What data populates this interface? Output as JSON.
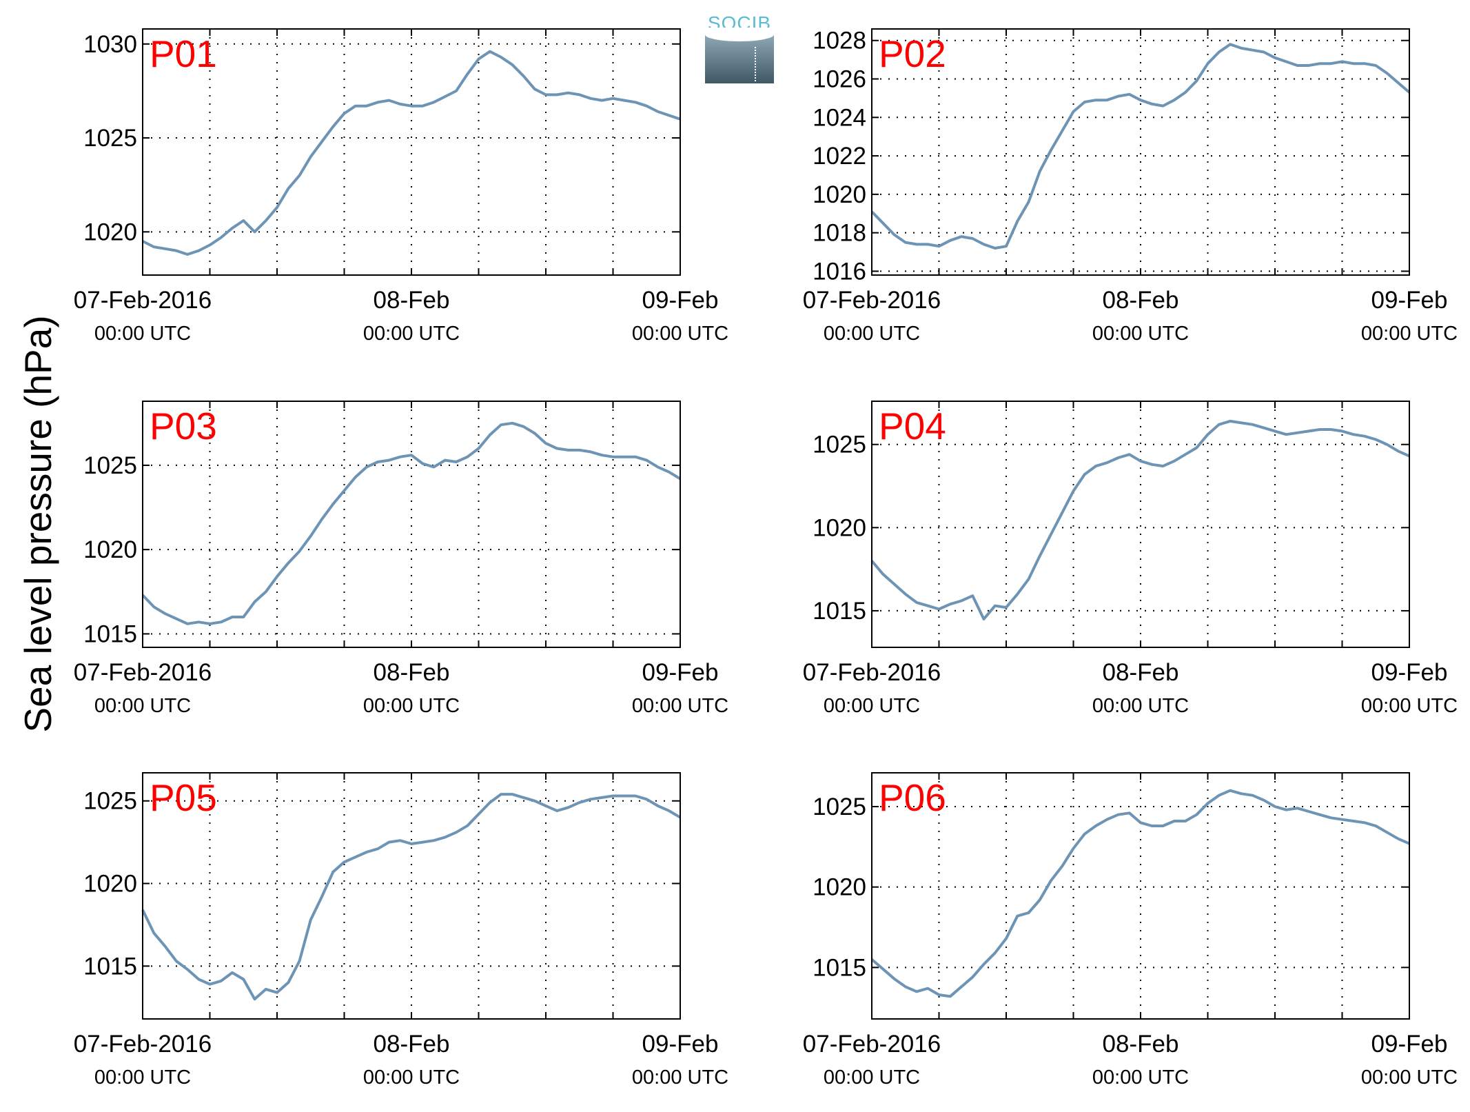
{
  "figure": {
    "ylabel": "Sea level pressure (hPa)",
    "logo_text": "SOCIB",
    "line_color": "#6d94b5",
    "station_label_color": "#ff0000",
    "x_ticks": [
      {
        "day": 0,
        "line1": "07-Feb-2016",
        "line2": "00:00 UTC"
      },
      {
        "day": 1,
        "line1": "08-Feb",
        "line2": "00:00 UTC"
      },
      {
        "day": 2,
        "line1": "09-Feb",
        "line2": "00:00 UTC"
      }
    ],
    "x_grid_step_hours": 6
  },
  "chart_data": [
    {
      "type": "line",
      "label": "P01",
      "xlim": [
        0,
        48
      ],
      "ylim": [
        1017.7,
        1030.8
      ],
      "yticks": [
        1020,
        1025,
        1030
      ],
      "x": [
        0,
        1,
        2,
        3,
        4,
        5,
        6,
        7,
        8,
        9,
        10,
        11,
        12,
        13,
        14,
        15,
        16,
        17,
        18,
        19,
        20,
        21,
        22,
        23,
        24,
        25,
        26,
        27,
        28,
        29,
        30,
        31,
        32,
        33,
        34,
        35,
        36,
        37,
        38,
        39,
        40,
        41,
        42,
        43,
        44,
        45,
        46,
        47,
        48
      ],
      "y": [
        1019.5,
        1019.2,
        1019.1,
        1019.0,
        1018.8,
        1019.0,
        1019.3,
        1019.7,
        1020.2,
        1020.6,
        1020.0,
        1020.6,
        1021.3,
        1022.3,
        1023.0,
        1024.0,
        1024.8,
        1025.6,
        1026.3,
        1026.7,
        1026.7,
        1026.9,
        1027.0,
        1026.8,
        1026.7,
        1026.7,
        1026.9,
        1027.2,
        1027.5,
        1028.4,
        1029.2,
        1029.6,
        1029.3,
        1028.9,
        1028.3,
        1027.6,
        1027.3,
        1027.3,
        1027.4,
        1027.3,
        1027.1,
        1027.0,
        1027.1,
        1027.0,
        1026.9,
        1026.7,
        1026.4,
        1026.2,
        1026.0
      ]
    },
    {
      "type": "line",
      "label": "P02",
      "xlim": [
        0,
        48
      ],
      "ylim": [
        1015.8,
        1028.6
      ],
      "yticks": [
        1016,
        1018,
        1020,
        1022,
        1024,
        1026,
        1028
      ],
      "x": [
        0,
        1,
        2,
        3,
        4,
        5,
        6,
        7,
        8,
        9,
        10,
        11,
        12,
        13,
        14,
        15,
        16,
        17,
        18,
        19,
        20,
        21,
        22,
        23,
        24,
        25,
        26,
        27,
        28,
        29,
        30,
        31,
        32,
        33,
        34,
        35,
        36,
        37,
        38,
        39,
        40,
        41,
        42,
        43,
        44,
        45,
        46,
        47,
        48
      ],
      "y": [
        1019.1,
        1018.5,
        1017.9,
        1017.5,
        1017.4,
        1017.4,
        1017.3,
        1017.6,
        1017.8,
        1017.7,
        1017.4,
        1017.2,
        1017.3,
        1018.6,
        1019.6,
        1021.2,
        1022.3,
        1023.3,
        1024.3,
        1024.8,
        1024.9,
        1024.9,
        1025.1,
        1025.2,
        1024.9,
        1024.7,
        1024.6,
        1024.9,
        1025.3,
        1025.9,
        1026.8,
        1027.4,
        1027.8,
        1027.6,
        1027.5,
        1027.4,
        1027.1,
        1026.9,
        1026.7,
        1026.7,
        1026.8,
        1026.8,
        1026.9,
        1026.8,
        1026.8,
        1026.7,
        1026.3,
        1025.8,
        1025.3
      ]
    },
    {
      "type": "line",
      "label": "P03",
      "xlim": [
        0,
        48
      ],
      "ylim": [
        1014.2,
        1028.8
      ],
      "yticks": [
        1015,
        1020,
        1025
      ],
      "x": [
        0,
        1,
        2,
        3,
        4,
        5,
        6,
        7,
        8,
        9,
        10,
        11,
        12,
        13,
        14,
        15,
        16,
        17,
        18,
        19,
        20,
        21,
        22,
        23,
        24,
        25,
        26,
        27,
        28,
        29,
        30,
        31,
        32,
        33,
        34,
        35,
        36,
        37,
        38,
        39,
        40,
        41,
        42,
        43,
        44,
        45,
        46,
        47,
        48
      ],
      "y": [
        1017.3,
        1016.6,
        1016.2,
        1015.9,
        1015.6,
        1015.7,
        1015.6,
        1015.7,
        1016.0,
        1016.0,
        1016.9,
        1017.5,
        1018.4,
        1019.2,
        1019.9,
        1020.8,
        1021.8,
        1022.7,
        1023.5,
        1024.3,
        1024.9,
        1025.2,
        1025.3,
        1025.5,
        1025.6,
        1025.1,
        1024.9,
        1025.3,
        1025.2,
        1025.5,
        1026.0,
        1026.8,
        1027.4,
        1027.5,
        1027.3,
        1026.9,
        1026.3,
        1026.0,
        1025.9,
        1025.9,
        1025.8,
        1025.6,
        1025.5,
        1025.5,
        1025.5,
        1025.3,
        1024.9,
        1024.6,
        1024.2
      ]
    },
    {
      "type": "line",
      "label": "P04",
      "xlim": [
        0,
        48
      ],
      "ylim": [
        1012.8,
        1027.6
      ],
      "yticks": [
        1015,
        1020,
        1025
      ],
      "x": [
        0,
        1,
        2,
        3,
        4,
        5,
        6,
        7,
        8,
        9,
        10,
        11,
        12,
        13,
        14,
        15,
        16,
        17,
        18,
        19,
        20,
        21,
        22,
        23,
        24,
        25,
        26,
        27,
        28,
        29,
        30,
        31,
        32,
        33,
        34,
        35,
        36,
        37,
        38,
        39,
        40,
        41,
        42,
        43,
        44,
        45,
        46,
        47,
        48
      ],
      "y": [
        1018.0,
        1017.2,
        1016.6,
        1016.0,
        1015.5,
        1015.3,
        1015.1,
        1015.4,
        1015.6,
        1015.9,
        1014.5,
        1015.3,
        1015.2,
        1016.0,
        1016.9,
        1018.3,
        1019.6,
        1020.9,
        1022.2,
        1023.2,
        1023.7,
        1023.9,
        1024.2,
        1024.4,
        1024.0,
        1023.8,
        1023.7,
        1024.0,
        1024.4,
        1024.8,
        1025.6,
        1026.2,
        1026.4,
        1026.3,
        1026.2,
        1026.0,
        1025.8,
        1025.6,
        1025.7,
        1025.8,
        1025.9,
        1025.9,
        1025.8,
        1025.6,
        1025.5,
        1025.3,
        1025.0,
        1024.6,
        1024.3
      ]
    },
    {
      "type": "line",
      "label": "P05",
      "xlim": [
        0,
        48
      ],
      "ylim": [
        1011.8,
        1026.7
      ],
      "yticks": [
        1015,
        1020,
        1025
      ],
      "x": [
        0,
        1,
        2,
        3,
        4,
        5,
        6,
        7,
        8,
        9,
        10,
        11,
        12,
        13,
        14,
        15,
        16,
        17,
        18,
        19,
        20,
        21,
        22,
        23,
        24,
        25,
        26,
        27,
        28,
        29,
        30,
        31,
        32,
        33,
        34,
        35,
        36,
        37,
        38,
        39,
        40,
        41,
        42,
        43,
        44,
        45,
        46,
        47,
        48
      ],
      "y": [
        1018.4,
        1017.0,
        1016.2,
        1015.3,
        1014.8,
        1014.2,
        1013.9,
        1014.1,
        1014.6,
        1014.2,
        1013.0,
        1013.6,
        1013.4,
        1014.0,
        1015.3,
        1017.8,
        1019.2,
        1020.7,
        1021.3,
        1021.6,
        1021.9,
        1022.1,
        1022.5,
        1022.6,
        1022.4,
        1022.5,
        1022.6,
        1022.8,
        1023.1,
        1023.5,
        1024.2,
        1024.9,
        1025.4,
        1025.4,
        1025.2,
        1025.0,
        1024.7,
        1024.4,
        1024.6,
        1024.9,
        1025.1,
        1025.2,
        1025.3,
        1025.3,
        1025.3,
        1025.1,
        1024.7,
        1024.4,
        1024.0
      ]
    },
    {
      "type": "line",
      "label": "P06",
      "xlim": [
        0,
        48
      ],
      "ylim": [
        1011.8,
        1027.1
      ],
      "yticks": [
        1015,
        1020,
        1025
      ],
      "x": [
        0,
        1,
        2,
        3,
        4,
        5,
        6,
        7,
        8,
        9,
        10,
        11,
        12,
        13,
        14,
        15,
        16,
        17,
        18,
        19,
        20,
        21,
        22,
        23,
        24,
        25,
        26,
        27,
        28,
        29,
        30,
        31,
        32,
        33,
        34,
        35,
        36,
        37,
        38,
        39,
        40,
        41,
        42,
        43,
        44,
        45,
        46,
        47,
        48
      ],
      "y": [
        1015.5,
        1014.9,
        1014.3,
        1013.8,
        1013.5,
        1013.7,
        1013.3,
        1013.2,
        1013.8,
        1014.4,
        1015.2,
        1015.9,
        1016.8,
        1018.2,
        1018.4,
        1019.2,
        1020.4,
        1021.3,
        1022.4,
        1023.3,
        1023.8,
        1024.2,
        1024.5,
        1024.6,
        1024.0,
        1023.8,
        1023.8,
        1024.1,
        1024.1,
        1024.5,
        1025.2,
        1025.7,
        1026.0,
        1025.8,
        1025.7,
        1025.4,
        1025.0,
        1024.8,
        1024.9,
        1024.7,
        1024.5,
        1024.3,
        1024.2,
        1024.1,
        1024.0,
        1023.8,
        1023.4,
        1023.0,
        1022.7
      ]
    }
  ]
}
